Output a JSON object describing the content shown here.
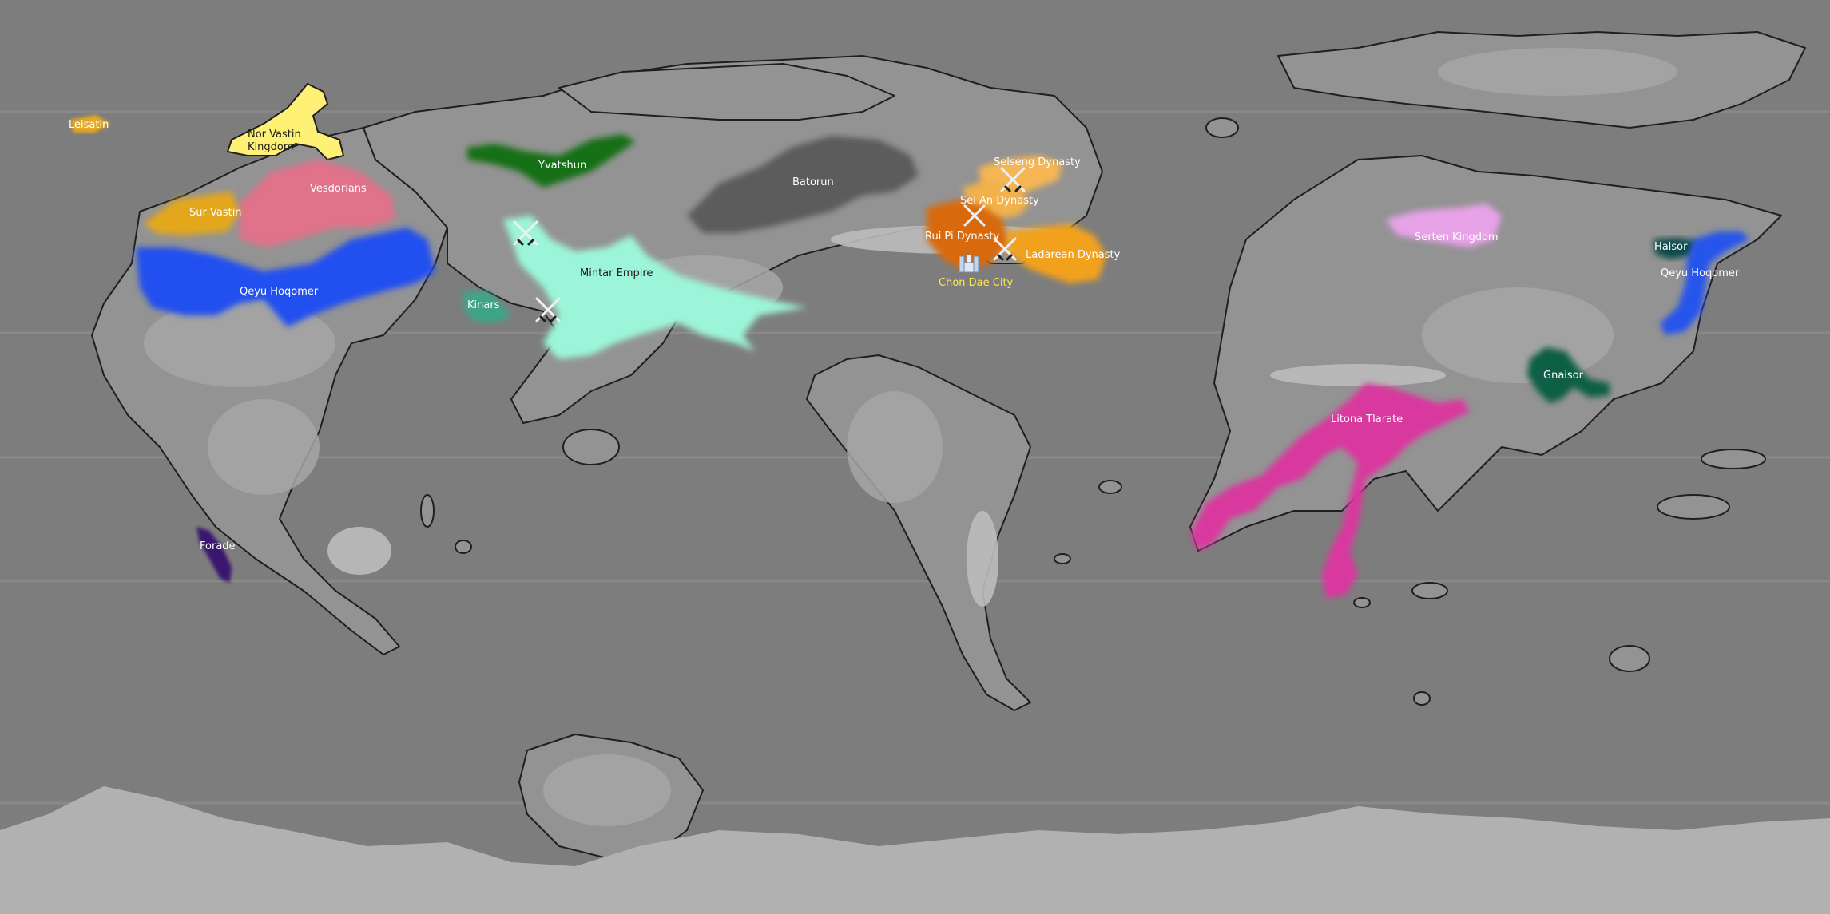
{
  "colors": {
    "ocean": "#7d7d7d",
    "land_low": "#939393",
    "land_mid": "#a3a3a3",
    "land_high": "#b4b4b4",
    "ice": "#b3b3b3",
    "coast": "#1f1f1f"
  },
  "regions": [
    {
      "label": "Leisatin",
      "color": "#e8a81e",
      "label_tone": "light"
    },
    {
      "label": "Nor Vastin",
      "label2": "Kingdom",
      "color": "#fff176",
      "label_tone": "dark"
    },
    {
      "label": "Vesdorians",
      "color": "#e0728a",
      "label_tone": "light"
    },
    {
      "label": "Sur Vastin",
      "color": "#e3a71c",
      "label_tone": "light"
    },
    {
      "label": "Qeyu Hoqomer",
      "color": "#2350ef",
      "label_tone": "light"
    },
    {
      "label": "Yvatshun",
      "color": "#137013",
      "label_tone": "light"
    },
    {
      "label": "Mintar Empire",
      "color": "#9cf5d8",
      "label_tone": "dark"
    },
    {
      "label": "Kinars",
      "color": "#3ea585",
      "label_tone": "light"
    },
    {
      "label": "Batorun",
      "color": "#5b5b5b",
      "label_tone": "light"
    },
    {
      "label": "Selseng Dynasty",
      "color": "#f5b652",
      "label_tone": "light"
    },
    {
      "label": "Sei An Dynasty",
      "color": "#f1b14c",
      "label_tone": "light"
    },
    {
      "label": "Rui Pi Dynasty",
      "color": "#d86b08",
      "label_tone": "light"
    },
    {
      "label": "Ladarean Dynasty",
      "color": "#f2a11f",
      "label_tone": "light"
    },
    {
      "label": "Chon Dae City",
      "color": "#ffe84a",
      "label_tone": "yellow"
    },
    {
      "label": "Serten Kingdom",
      "color": "#e8a2e8",
      "label_tone": "light"
    },
    {
      "label": "Halsor",
      "color": "#0f4b4b",
      "label_tone": "light"
    },
    {
      "label": "Qeyu Hoqomer",
      "color": "#2554ec",
      "label_tone": "light"
    },
    {
      "label": "Gnaisor",
      "color": "#0b5e45",
      "label_tone": "light"
    },
    {
      "label": "Litona Tlarate",
      "color": "#d9389e",
      "label_tone": "light"
    },
    {
      "label": "Forade",
      "color": "#3b1970",
      "label_tone": "light"
    }
  ],
  "battle_icon": "crossed-swords-icon",
  "city_icon": "castle-icon"
}
